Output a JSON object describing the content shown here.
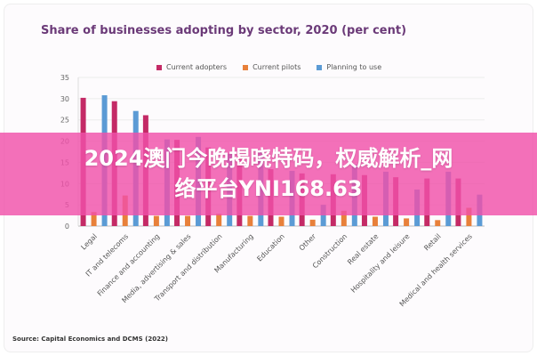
{
  "chart_data": {
    "type": "bar",
    "title": "Share of businesses adopting by sector, 2020 (per cent)",
    "categories": [
      "Legal",
      "IT and telecoms",
      "Finance and accounting",
      "Media, advertising & sales",
      "Transport and distribution",
      "Manufacturing",
      "Education",
      "Other",
      "Construction",
      "Real estate",
      "Hospitality and leisure",
      "Retail",
      "Medical and health services"
    ],
    "series": [
      {
        "name": "Current adopters",
        "color": "#c42a66",
        "values": [
          30.2,
          29.4,
          26.1,
          20.3,
          18.5,
          16.6,
          13.4,
          12.4,
          12.2,
          12.0,
          11.5,
          11.2,
          11.2
        ]
      },
      {
        "name": "Current pilots",
        "color": "#e8803a",
        "values": [
          3.3,
          7.2,
          2.4,
          2.4,
          2.9,
          2.4,
          2.2,
          1.5,
          3.6,
          2.2,
          1.8,
          1.4,
          4.3
        ]
      },
      {
        "name": "Planning to use",
        "color": "#5b9bd5",
        "values": [
          30.8,
          27.1,
          20.4,
          21.0,
          17.0,
          17.5,
          13.0,
          5.0,
          14.5,
          12.8,
          8.6,
          12.8,
          7.4
        ]
      }
    ],
    "ylim": [
      0,
      35
    ],
    "yticks": [
      0,
      5,
      10,
      15,
      20,
      25,
      30,
      35
    ],
    "grid": true,
    "legend": "top",
    "source": "Source: Capital Economics and DCMS (2022)"
  },
  "overlay": {
    "line1": "2024澳门今晚揭晓特码，权威解析_网",
    "line2": "络平台YNI168.63",
    "color": "#f050aa"
  }
}
